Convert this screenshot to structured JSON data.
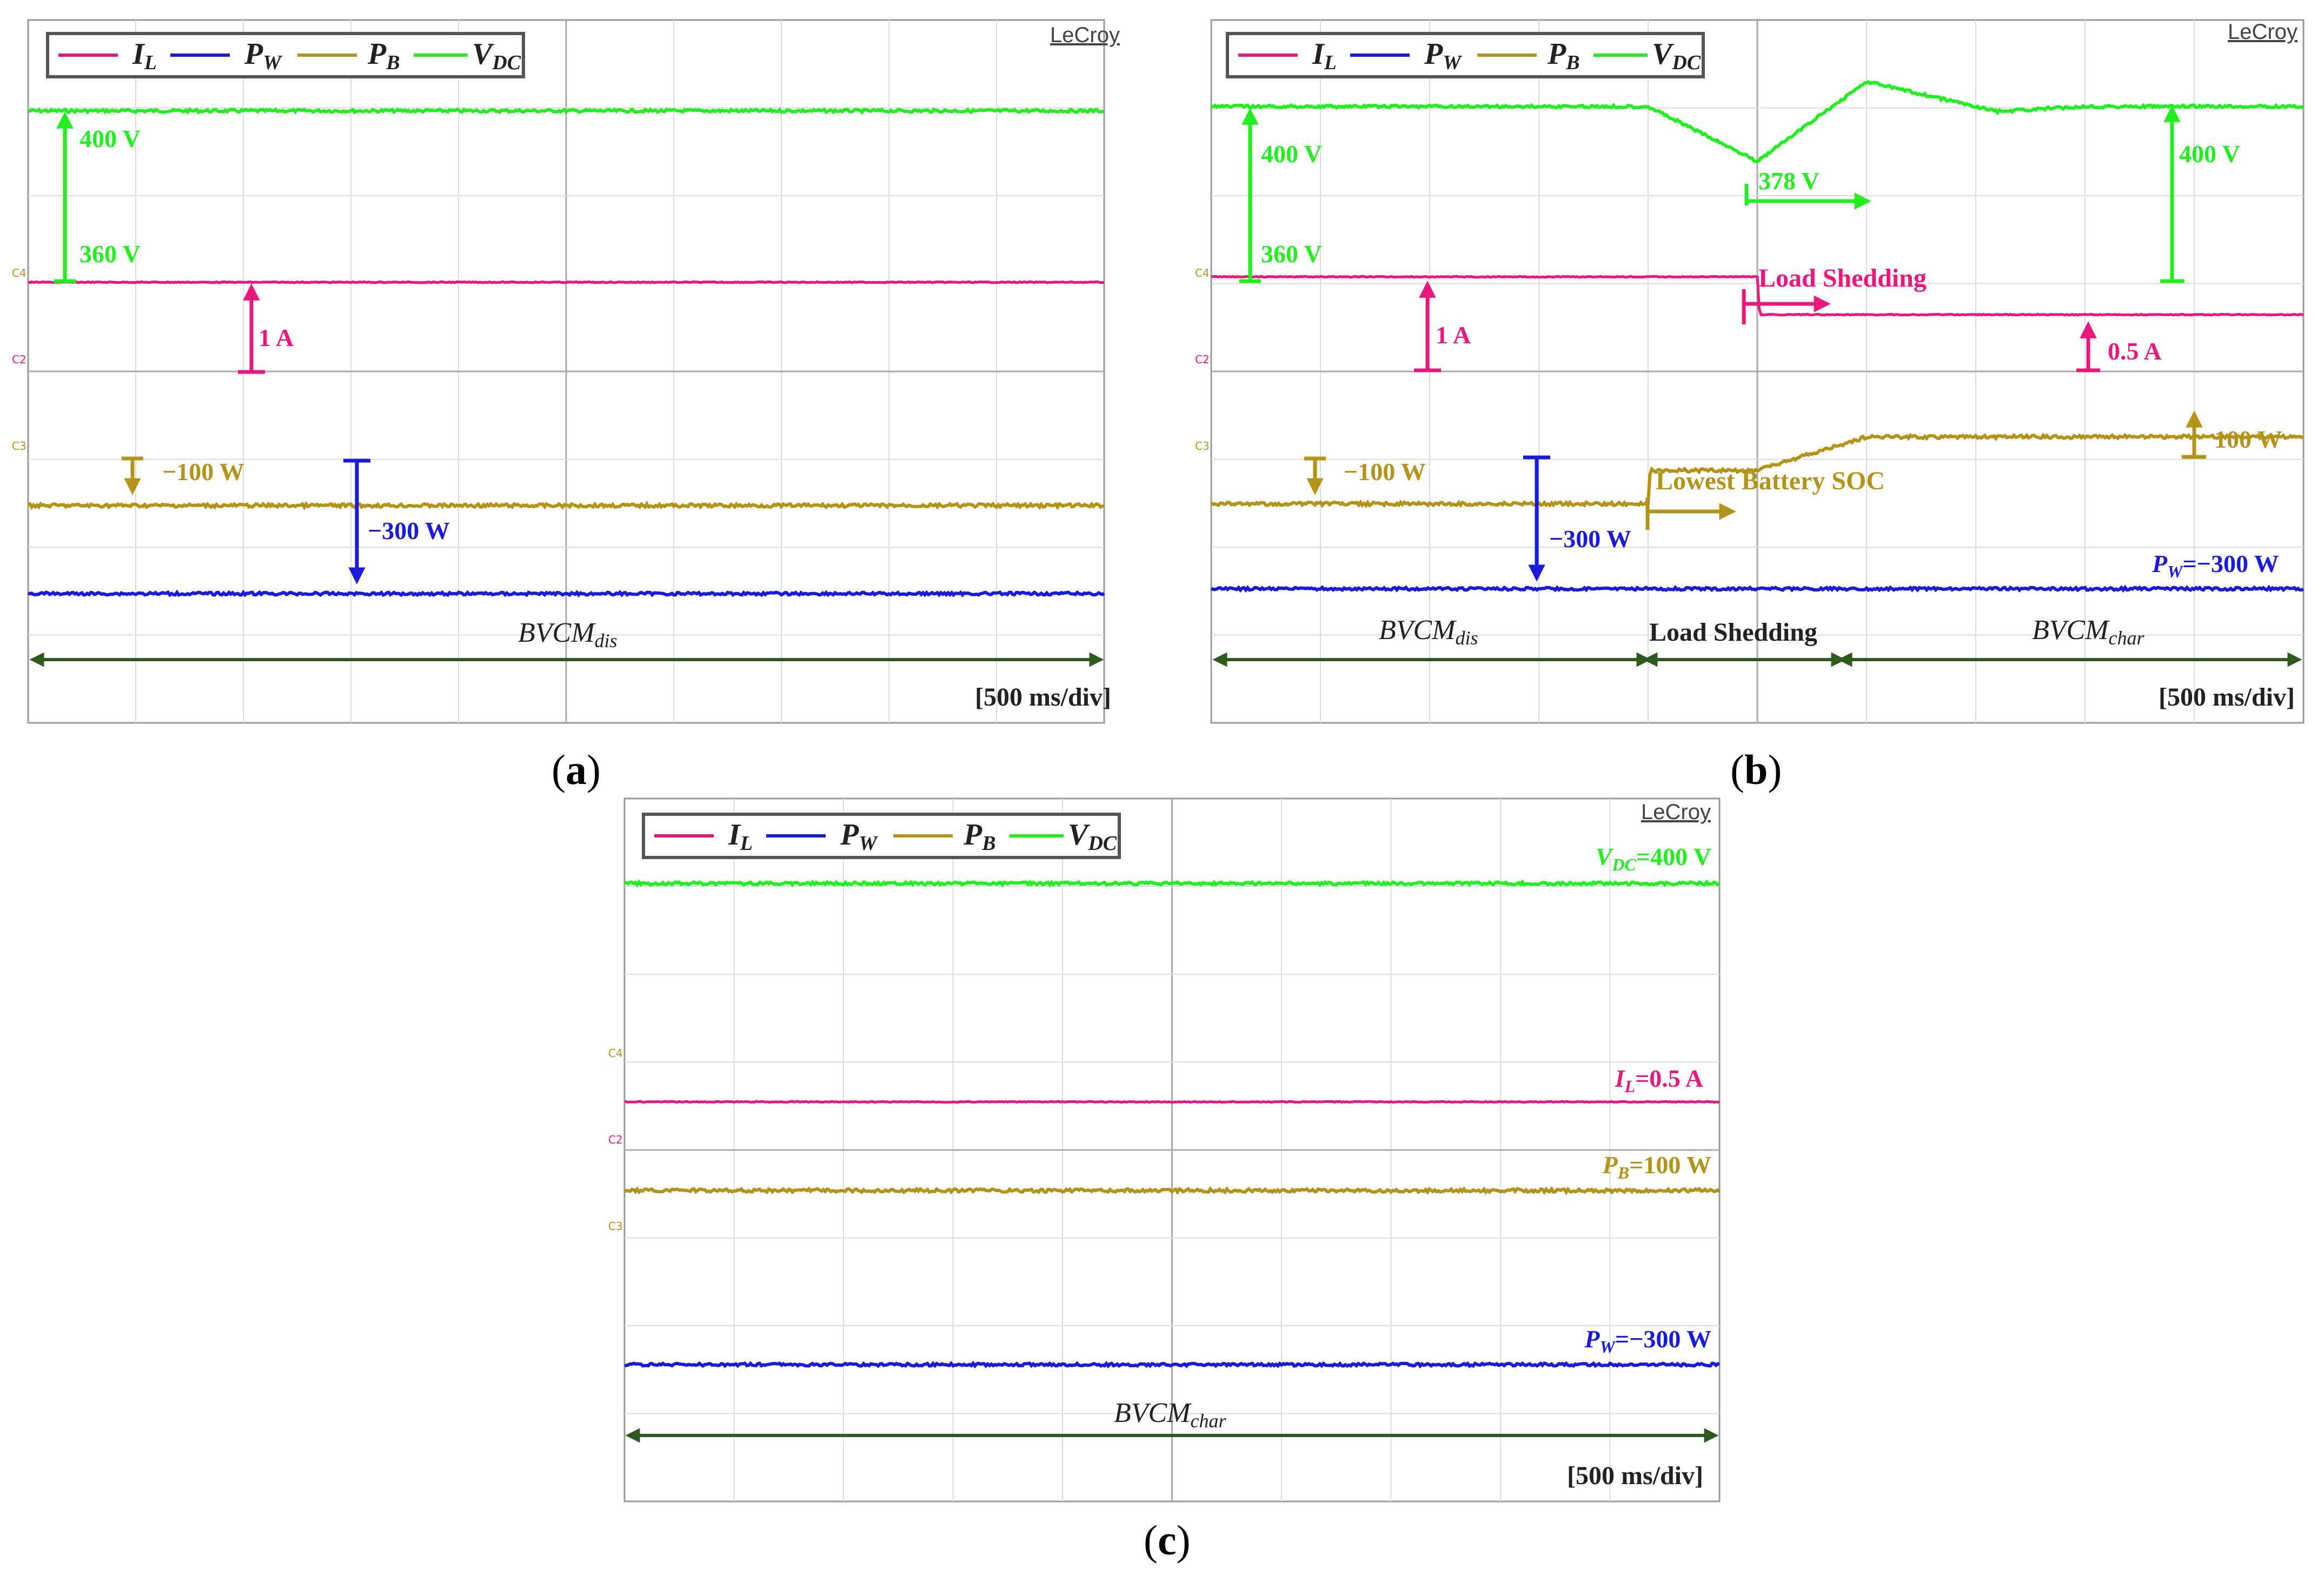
{
  "colors": {
    "IL": "#e8187d",
    "PW": "#1a1adc",
    "PB": "#b39318",
    "VDC": "#22ee22",
    "arrowDark": "#2e5a1f",
    "text": "#222222"
  },
  "legend": {
    "IL": {
      "base": "I",
      "sub": "L"
    },
    "PW": {
      "base": "P",
      "sub": "W"
    },
    "PB": {
      "base": "P",
      "sub": "B"
    },
    "VDC": {
      "base": "V",
      "sub": "DC"
    }
  },
  "brand": "LeCroy",
  "timebase": "[500 ms/div]",
  "channels": {
    "c4": "C4",
    "c2": "C2",
    "c3": "C3"
  },
  "panels": {
    "a": {
      "caption_open": "(",
      "caption_letter": "a",
      "caption_close": ")",
      "label_400": "400 V",
      "label_360": "360 V",
      "label_1A": "1 A",
      "label_m100": "−100 W",
      "label_m300": "−300 W",
      "mode": {
        "base": "BVCM",
        "sub": "dis"
      }
    },
    "b": {
      "caption_open": "(",
      "caption_letter": "b",
      "caption_close": ")",
      "label_400_left": "400 V",
      "label_360": "360 V",
      "label_1A": "1 A",
      "label_m100": "−100 W",
      "label_m300": "−300 W",
      "label_378": "378 V",
      "label_load_shedding": "Load Shedding",
      "label_400_right": "400 V",
      "label_05A": "0.5 A",
      "label_lowest_soc": "Lowest Battery SOC",
      "label_100W": "100 W",
      "pw_label": {
        "base": "P",
        "sub": "W",
        "value": "=−300 W"
      },
      "mode_dis": {
        "base": "BVCM",
        "sub": "dis"
      },
      "mode_ls": "Load Shedding",
      "mode_char": {
        "base": "BVCM",
        "sub": "char"
      }
    },
    "c": {
      "caption_open": "(",
      "caption_letter": "c",
      "caption_close": ")",
      "vdc_label": {
        "base": "V",
        "sub": "DC",
        "value": "=400 V"
      },
      "il_label": {
        "base": "I",
        "sub": "L",
        "value": "=0.5 A"
      },
      "pb_label": {
        "base": "P",
        "sub": "B",
        "value": "=100 W"
      },
      "pw_label": {
        "base": "P",
        "sub": "W",
        "value": "=−300 W"
      },
      "mode": {
        "base": "BVCM",
        "sub": "char"
      }
    }
  },
  "chart_data": [
    {
      "panel": "a",
      "type": "line",
      "x_unit": "ms",
      "x": [
        0,
        5000
      ],
      "series": [
        {
          "name": "V_DC",
          "values": [
            400,
            400
          ]
        },
        {
          "name": "I_L",
          "values": [
            1,
            1
          ]
        },
        {
          "name": "P_B",
          "values": [
            -100,
            -100
          ]
        },
        {
          "name": "P_W",
          "values": [
            -300,
            -300
          ]
        }
      ]
    },
    {
      "panel": "b",
      "type": "line",
      "x_unit": "ms",
      "series": [
        {
          "name": "V_DC",
          "x": [
            0,
            2000,
            2500,
            3000,
            3600,
            4000,
            5000
          ],
          "values": [
            400,
            400,
            378,
            410,
            398,
            400,
            400
          ]
        },
        {
          "name": "I_L",
          "x": [
            0,
            2000,
            2500,
            2510,
            5000
          ],
          "values": [
            1,
            1,
            1,
            0.5,
            0.5
          ]
        },
        {
          "name": "P_B",
          "x": [
            0,
            2000,
            2010,
            2500,
            3000,
            3500,
            5000
          ],
          "values": [
            -100,
            -100,
            0,
            0,
            100,
            100,
            100
          ]
        },
        {
          "name": "P_W",
          "x": [
            0,
            5000
          ],
          "values": [
            -300,
            -300
          ]
        }
      ]
    },
    {
      "panel": "c",
      "type": "line",
      "x_unit": "ms",
      "x": [
        0,
        5000
      ],
      "series": [
        {
          "name": "V_DC",
          "values": [
            400,
            400
          ]
        },
        {
          "name": "I_L",
          "values": [
            0.5,
            0.5
          ]
        },
        {
          "name": "P_B",
          "values": [
            100,
            100
          ]
        },
        {
          "name": "P_W",
          "values": [
            -300,
            -300
          ]
        }
      ]
    }
  ]
}
